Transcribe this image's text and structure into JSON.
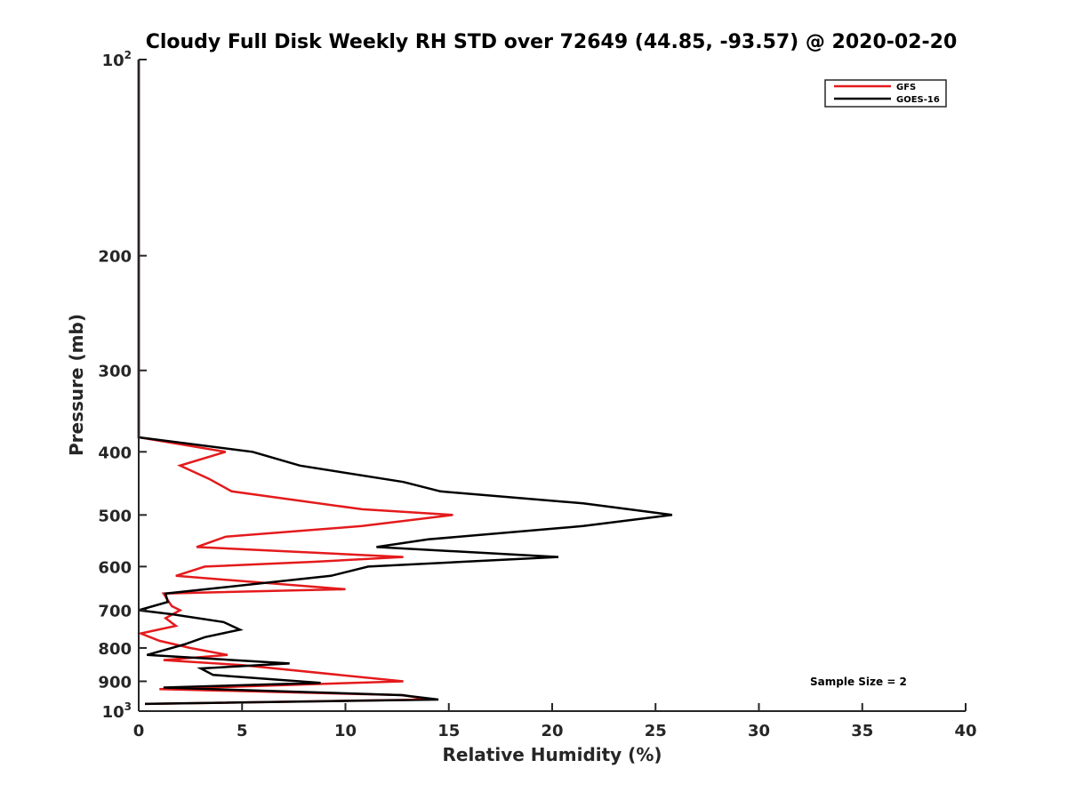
{
  "chart_data": {
    "type": "line",
    "title": "Cloudy Full Disk Weekly RH STD over 72649 (44.85, -93.57) @ 2020-02-20",
    "xlabel": "Relative Humidity (%)",
    "ylabel": "Pressure (mb)",
    "xlim": [
      0,
      40
    ],
    "ylim": [
      100,
      1000
    ],
    "y_scale": "log",
    "y_reversed": true,
    "x_ticks": [
      "0",
      "5",
      "10",
      "15",
      "20",
      "25",
      "30",
      "35",
      "40"
    ],
    "y_ticks": [
      {
        "value": 100,
        "base": "10",
        "exp": "2"
      },
      {
        "value": 200,
        "label": "200"
      },
      {
        "value": 300,
        "label": "300"
      },
      {
        "value": 400,
        "label": "400"
      },
      {
        "value": 500,
        "label": "500"
      },
      {
        "value": 600,
        "label": "600"
      },
      {
        "value": 700,
        "label": "700"
      },
      {
        "value": 800,
        "label": "800"
      },
      {
        "value": 900,
        "label": "900"
      },
      {
        "value": 1000,
        "base": "10",
        "exp": "3"
      }
    ],
    "grid": false,
    "legend_position": "top-right",
    "annotation": "Sample Size = 2",
    "series": [
      {
        "name": "GFS",
        "color": "#e41a1c",
        "points": [
          [
            0,
            100
          ],
          [
            0,
            380
          ],
          [
            4.2,
            400
          ],
          [
            2.0,
            420
          ],
          [
            3.4,
            440
          ],
          [
            4.5,
            460
          ],
          [
            10.8,
            490
          ],
          [
            15.2,
            500
          ],
          [
            10.8,
            520
          ],
          [
            4.2,
            540
          ],
          [
            2.8,
            560
          ],
          [
            12.8,
            580
          ],
          [
            8.5,
            590
          ],
          [
            3.2,
            600
          ],
          [
            1.8,
            620
          ],
          [
            10.0,
            650
          ],
          [
            1.2,
            660
          ],
          [
            1.6,
            690
          ],
          [
            2.0,
            700
          ],
          [
            1.3,
            720
          ],
          [
            1.8,
            740
          ],
          [
            0.1,
            760
          ],
          [
            1.0,
            780
          ],
          [
            2.5,
            800
          ],
          [
            4.3,
            820
          ],
          [
            1.2,
            835
          ],
          [
            5.0,
            850
          ],
          [
            12.8,
            900
          ],
          [
            1.0,
            925
          ],
          [
            12.8,
            945
          ],
          [
            14.0,
            960
          ],
          [
            0.3,
            975
          ]
        ]
      },
      {
        "name": "GOES-16",
        "color": "#000000",
        "points": [
          [
            0,
            100
          ],
          [
            0,
            380
          ],
          [
            5.5,
            400
          ],
          [
            7.8,
            420
          ],
          [
            12.8,
            445
          ],
          [
            14.6,
            460
          ],
          [
            21.5,
            480
          ],
          [
            25.8,
            500
          ],
          [
            21.5,
            520
          ],
          [
            14.0,
            545
          ],
          [
            11.5,
            560
          ],
          [
            20.3,
            580
          ],
          [
            11.1,
            600
          ],
          [
            9.3,
            620
          ],
          [
            1.3,
            660
          ],
          [
            1.4,
            680
          ],
          [
            0.0,
            700
          ],
          [
            1.6,
            710
          ],
          [
            4.1,
            730
          ],
          [
            4.9,
            750
          ],
          [
            3.2,
            770
          ],
          [
            2.2,
            790
          ],
          [
            0.4,
            820
          ],
          [
            7.3,
            845
          ],
          [
            3.0,
            860
          ],
          [
            3.6,
            880
          ],
          [
            8.8,
            905
          ],
          [
            1.2,
            920
          ],
          [
            12.7,
            945
          ],
          [
            14.5,
            960
          ],
          [
            0.3,
            975
          ]
        ]
      }
    ]
  }
}
